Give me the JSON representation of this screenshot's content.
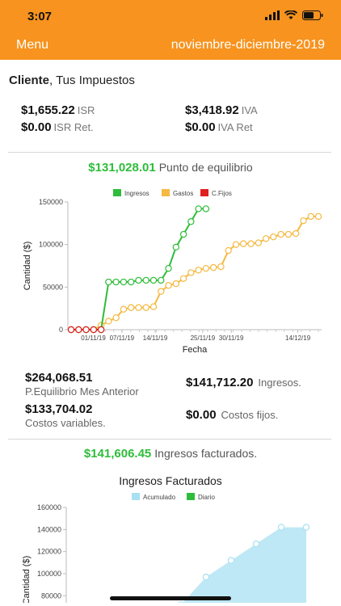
{
  "status": {
    "time": "3:07"
  },
  "nav": {
    "menu_label": "Menu",
    "period": "noviembre-diciembre-2019"
  },
  "client": {
    "label": "Cliente",
    "name": ", Tus Impuestos"
  },
  "taxes": {
    "isr": {
      "amount": "$1,655.22",
      "label": "ISR"
    },
    "iva": {
      "amount": "$3,418.92",
      "label": "IVA"
    },
    "isr_ret": {
      "amount": "$0.00",
      "label": "ISR Ret."
    },
    "iva_ret": {
      "amount": "$0.00",
      "label": "IVA Ret"
    }
  },
  "breakeven": {
    "amount": "$131,028.01",
    "label": "Punto de equilibrio"
  },
  "stats": {
    "prev_month": {
      "amount": "$264,068.51",
      "label": "P.Equilibrio Mes Anterior"
    },
    "income": {
      "amount": "$141,712.20",
      "label": "Ingresos."
    },
    "variable_costs": {
      "amount": "$133,704.02",
      "label": "Costos variables."
    },
    "fixed_costs": {
      "amount": "$0.00",
      "label": "Costos fijos."
    }
  },
  "invoiced": {
    "amount": "$141,606.45",
    "label": "Ingresos facturados."
  },
  "colors": {
    "accent": "#f7931e",
    "ingresos": "#2ebd3a",
    "gastos": "#f5b942",
    "cfijos": "#e02020",
    "acumulado": "#a8e0f2",
    "diario": "#2ebd3a"
  },
  "chart_data": [
    {
      "type": "line",
      "title": "",
      "xlabel": "Fecha",
      "ylabel": "Cantidad ($)",
      "ylim": [
        0,
        150000
      ],
      "yticks": [
        "0",
        "50000",
        "100000",
        "150000"
      ],
      "xticks": [
        "01/11/19",
        "07/11/19",
        "14/11/19",
        "25/11/19",
        "30/11/19",
        "14/12/19"
      ],
      "legend": "top-center",
      "series": [
        {
          "name": "Ingresos",
          "x": [
            0,
            1,
            2,
            3,
            4,
            5,
            6,
            7,
            8,
            9,
            10,
            11,
            12,
            13,
            14,
            15,
            16,
            17,
            18
          ],
          "values": [
            0,
            0,
            0,
            0,
            0,
            56000,
            56000,
            56000,
            56000,
            58000,
            58000,
            58000,
            58000,
            72000,
            97000,
            112000,
            127000,
            142000,
            142000
          ]
        },
        {
          "name": "Gastos",
          "x": [
            0,
            1,
            2,
            3,
            4,
            5,
            6,
            7,
            8,
            9,
            10,
            11,
            12,
            13,
            14,
            15,
            16,
            17,
            18,
            19,
            20,
            21,
            22,
            23,
            24,
            25,
            26,
            27,
            28,
            29,
            30,
            31,
            32,
            33
          ],
          "values": [
            0,
            0,
            0,
            0,
            5000,
            10000,
            14000,
            24000,
            26000,
            26000,
            26000,
            27000,
            45000,
            52000,
            54000,
            60000,
            67000,
            70000,
            72000,
            73000,
            74000,
            93000,
            100000,
            101000,
            101000,
            102000,
            107000,
            109000,
            112000,
            112000,
            113000,
            128000,
            133000,
            133000
          ]
        },
        {
          "name": "C.Fijos",
          "x": [
            0,
            1,
            2,
            3,
            4
          ],
          "values": [
            0,
            0,
            0,
            0,
            0
          ]
        }
      ]
    },
    {
      "type": "area",
      "title": "Ingresos Facturados",
      "xlabel": "",
      "ylabel": "Cantidad ($)",
      "ylim": [
        70000,
        160000
      ],
      "yticks": [
        "80000",
        "100000",
        "120000",
        "140000",
        "160000"
      ],
      "legend": "top-center",
      "series": [
        {
          "name": "Acumulado",
          "x": [
            0,
            1,
            2,
            3,
            4,
            5
          ],
          "values": [
            72000,
            97000,
            112000,
            127000,
            142000,
            142000
          ]
        },
        {
          "name": "Diario",
          "x": [],
          "values": []
        }
      ]
    }
  ]
}
